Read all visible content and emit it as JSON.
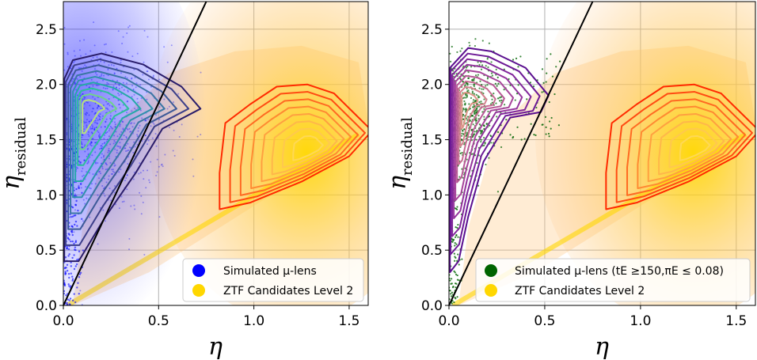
{
  "chart_data": [
    {
      "type": "scatter",
      "xlabel": "η",
      "ylabel_main": "η",
      "ylabel_sub": "residual",
      "xlim": [
        0,
        1.6
      ],
      "ylim": [
        0,
        2.75
      ],
      "xticks": [
        "0.0",
        "0.5",
        "1.0",
        "1.5"
      ],
      "yticks": [
        "0.0",
        "0.5",
        "1.0",
        "1.5",
        "2.0",
        "2.5"
      ],
      "grid": true,
      "legend_position": "bottom-right",
      "cut_line": {
        "x": [
          0,
          0.75
        ],
        "y": [
          0,
          2.75
        ]
      },
      "series": [
        {
          "name": "Simulated μ-lens",
          "color": "#0000ff",
          "contour_color": "#2a1d6b",
          "density_peak": {
            "x": 0.12,
            "y": 1.78
          }
        },
        {
          "name": "ZTF Candidates Level 2",
          "color": "#ffd700",
          "contour_color": "#ff2a00",
          "density_peak": {
            "x": 1.3,
            "y": 1.4
          }
        }
      ]
    },
    {
      "type": "scatter",
      "xlabel": "η",
      "ylabel_main": "η",
      "ylabel_sub": "residual",
      "xlim": [
        0,
        1.6
      ],
      "ylim": [
        0,
        2.75
      ],
      "xticks": [
        "0.0",
        "0.5",
        "1.0",
        "1.5"
      ],
      "yticks": [
        "0.0",
        "0.5",
        "1.0",
        "1.5",
        "2.0",
        "2.5"
      ],
      "grid": true,
      "legend_position": "bottom-right",
      "cut_line": {
        "x": [
          0,
          0.75
        ],
        "y": [
          0,
          2.75
        ]
      },
      "series": [
        {
          "name": "Simulated μ-lens (tE ≥150,πE ≤ 0.08)",
          "color": "#006400",
          "contour_color": "#5a0f8f",
          "density_peak": {
            "x": 0.08,
            "y": 1.85
          }
        },
        {
          "name": "ZTF Candidates Level 2",
          "color": "#ffd700",
          "contour_color": "#ff2a00",
          "density_peak": {
            "x": 1.3,
            "y": 1.4
          }
        }
      ]
    }
  ],
  "panels": [
    {
      "legend": [
        {
          "label": "Simulated μ-lens",
          "color": "#0000ff"
        },
        {
          "label": "ZTF Candidates Level 2",
          "color": "#ffd700"
        }
      ]
    },
    {
      "legend": [
        {
          "label": "Simulated μ-lens (tE ≥150,πE ≤ 0.08)",
          "color": "#006400"
        },
        {
          "label": "ZTF Candidates Level 2",
          "color": "#ffd700"
        }
      ]
    }
  ]
}
